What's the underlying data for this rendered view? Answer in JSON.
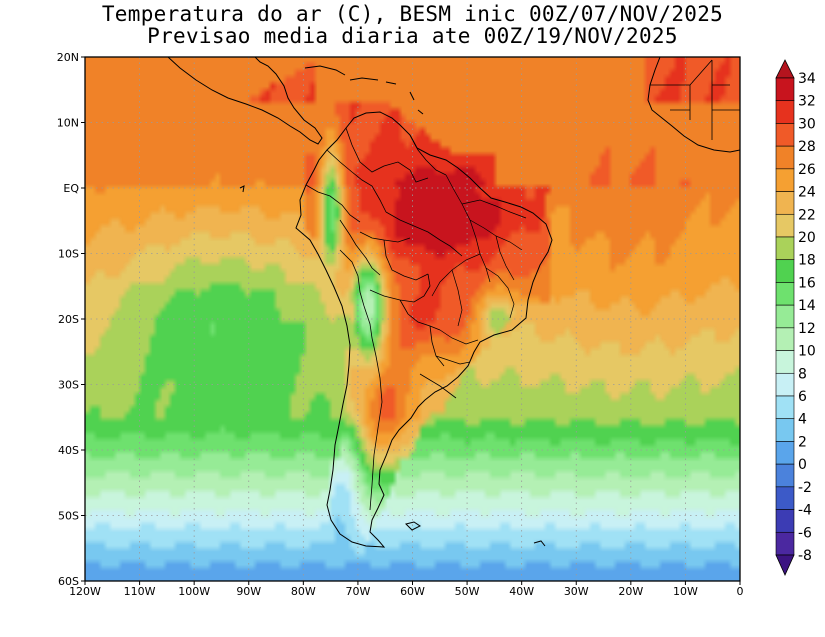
{
  "title": {
    "line1": "Temperatura do ar (C), BESM inic 00Z/07/NOV/2025",
    "line2": "Previsao media diaria ate 00Z/19/NOV/2025"
  },
  "map": {
    "lon_range": [
      -120,
      0
    ],
    "lat_range": [
      -60,
      20
    ],
    "lat_ticks": [
      {
        "value": 20,
        "label": "20N"
      },
      {
        "value": 10,
        "label": "10N"
      },
      {
        "value": 0,
        "label": "EQ"
      },
      {
        "value": -10,
        "label": "10S"
      },
      {
        "value": -20,
        "label": "20S"
      },
      {
        "value": -30,
        "label": "30S"
      },
      {
        "value": -40,
        "label": "40S"
      },
      {
        "value": -50,
        "label": "50S"
      },
      {
        "value": -60,
        "label": "60S"
      }
    ],
    "lon_ticks": [
      {
        "value": -120,
        "label": "120W"
      },
      {
        "value": -110,
        "label": "110W"
      },
      {
        "value": -100,
        "label": "100W"
      },
      {
        "value": -90,
        "label": "90W"
      },
      {
        "value": -80,
        "label": "80W"
      },
      {
        "value": -70,
        "label": "70W"
      },
      {
        "value": -60,
        "label": "60W"
      },
      {
        "value": -50,
        "label": "50W"
      },
      {
        "value": -40,
        "label": "40W"
      },
      {
        "value": -30,
        "label": "30W"
      },
      {
        "value": -20,
        "label": "20W"
      },
      {
        "value": -10,
        "label": "10W"
      },
      {
        "value": 0,
        "label": "0"
      }
    ]
  },
  "colorbar": {
    "levels": [
      {
        "label": "34",
        "color": "#c8141e"
      },
      {
        "label": "32",
        "color": "#e6321e"
      },
      {
        "label": "30",
        "color": "#f05a28"
      },
      {
        "label": "28",
        "color": "#f08228"
      },
      {
        "label": "26",
        "color": "#f5a032"
      },
      {
        "label": "24",
        "color": "#f0b450"
      },
      {
        "label": "22",
        "color": "#e6c864"
      },
      {
        "label": "20",
        "color": "#aad25a"
      },
      {
        "label": "18",
        "color": "#50d250"
      },
      {
        "label": "16",
        "color": "#6ee16e"
      },
      {
        "label": "14",
        "color": "#96eb96"
      },
      {
        "label": "12",
        "color": "#b4f0b4"
      },
      {
        "label": "10",
        "color": "#c8f5dc"
      },
      {
        "label": "8",
        "color": "#c8f0f5"
      },
      {
        "label": "6",
        "color": "#a0e1f5"
      },
      {
        "label": "4",
        "color": "#78c8f0"
      },
      {
        "label": "2",
        "color": "#5aa5eb"
      },
      {
        "label": "0",
        "color": "#4b82dc"
      },
      {
        "label": "-2",
        "color": "#3c5ac8"
      },
      {
        "label": "-4",
        "color": "#3c3cb4"
      },
      {
        "label": "-6",
        "color": "#4b28a0"
      },
      {
        "label": "-8",
        "color": "#3c1482"
      }
    ],
    "top_color": "#b4141e",
    "bottom_color": "#3c1482"
  },
  "field": {
    "contour_levels": [
      -8,
      -6,
      -4,
      -2,
      0,
      2,
      4,
      6,
      8,
      10,
      12,
      14,
      16,
      18,
      20,
      22,
      24,
      26,
      28,
      30,
      32,
      34
    ]
  }
}
